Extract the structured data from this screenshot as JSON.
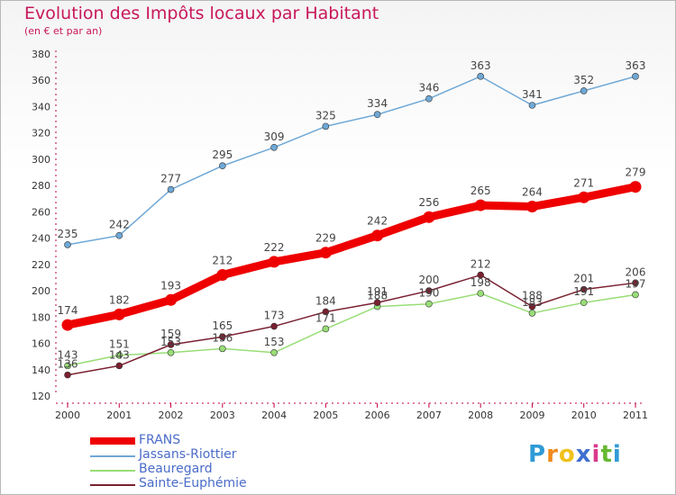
{
  "header": {
    "title": "Evolution des Impôts locaux par Habitant",
    "subtitle": "(en € et par an)"
  },
  "chart_data": {
    "type": "line",
    "title": "Evolution des Impôts locaux par Habitant",
    "subtitle": "(en € et par an)",
    "x": [
      "2000",
      "2001",
      "2002",
      "2003",
      "2004",
      "2005",
      "2006",
      "2007",
      "2008",
      "2009",
      "2010",
      "2011"
    ],
    "ylim": [
      120,
      380
    ],
    "yticks": [
      120,
      140,
      160,
      180,
      200,
      220,
      240,
      260,
      280,
      300,
      320,
      340,
      360,
      380
    ],
    "grid": false,
    "legend_position": "bottom-left",
    "series": [
      {
        "name": "FRANS",
        "color": "#ee0000",
        "values": [
          174,
          182,
          193,
          212,
          222,
          229,
          242,
          256,
          265,
          264,
          271,
          279
        ]
      },
      {
        "name": "Jassans-Riottier",
        "color": "#6fa8d6",
        "values": [
          235,
          242,
          277,
          295,
          309,
          325,
          334,
          346,
          363,
          341,
          352,
          363
        ]
      },
      {
        "name": "Beauregard",
        "color": "#99dd77",
        "values": [
          143,
          151,
          153,
          156,
          153,
          171,
          188,
          190,
          198,
          183,
          191,
          197
        ]
      },
      {
        "name": "Sainte-Euphémie",
        "color": "#7a2030",
        "values": [
          136,
          143,
          159,
          165,
          173,
          184,
          191,
          200,
          212,
          188,
          201,
          206
        ]
      }
    ]
  },
  "logo": {
    "letters": [
      "P",
      "r",
      "o",
      "x",
      "i",
      "t",
      "i"
    ],
    "colors": [
      "#2f9ad6",
      "#f08a1c",
      "#f0c21c",
      "#3f6fd0",
      "#d93a8c",
      "#66b832",
      "#2f9ad6"
    ]
  }
}
